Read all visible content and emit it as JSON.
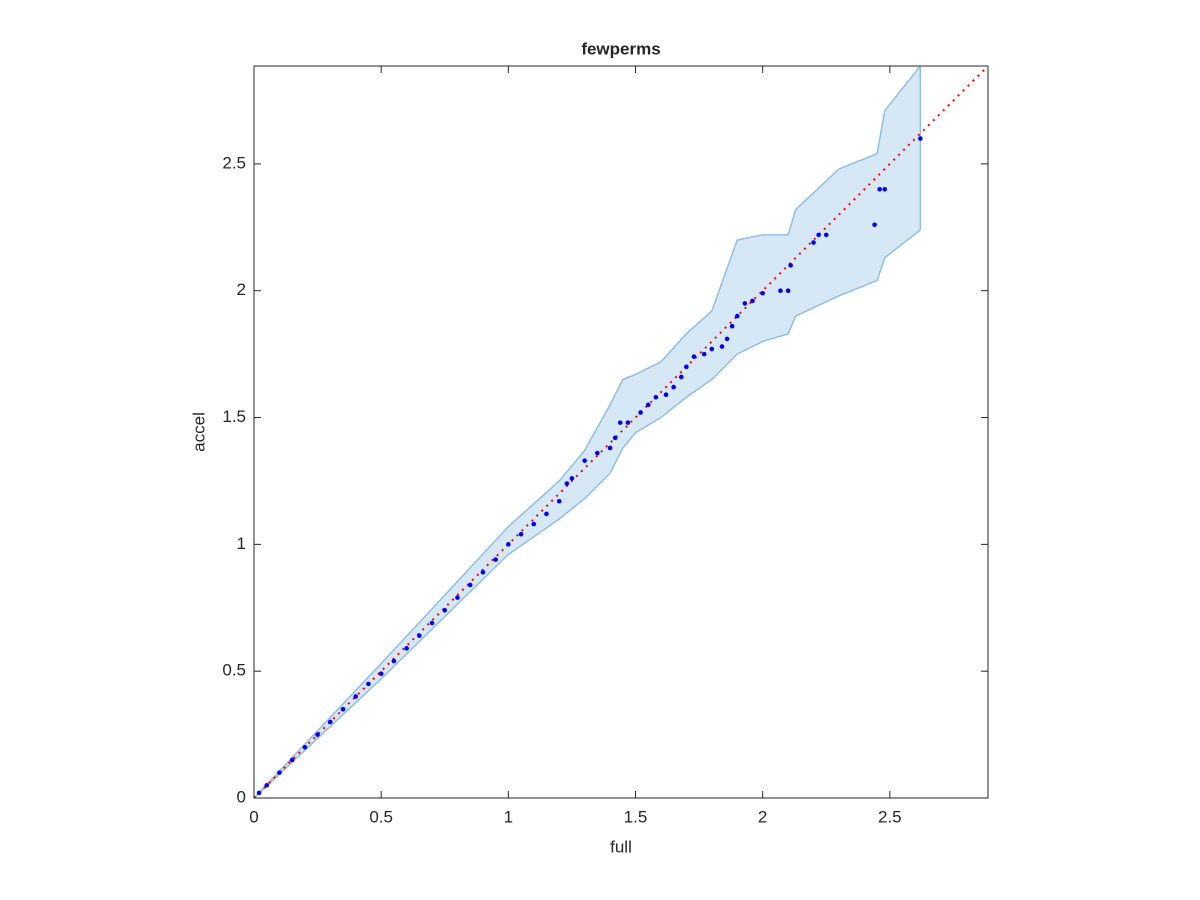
{
  "chart_data": {
    "type": "scatter",
    "title": "fewperms",
    "xlabel": "full",
    "ylabel": "accel",
    "xlim": [
      0,
      2.886
    ],
    "ylim": [
      0,
      2.886
    ],
    "xticks": [
      0,
      0.5,
      1,
      1.5,
      2,
      2.5
    ],
    "yticks": [
      0,
      0.5,
      1,
      1.5,
      2,
      2.5
    ],
    "grid": false,
    "band": {
      "color": "#d6e8f5",
      "edge_color": "#8fbfe0",
      "x": [
        0,
        0.5,
        1.0,
        1.2,
        1.3,
        1.4,
        1.45,
        1.5,
        1.6,
        1.7,
        1.8,
        1.9,
        2.0,
        2.1,
        2.13,
        2.3,
        2.45,
        2.48,
        2.62
      ],
      "upper": [
        0,
        0.53,
        1.07,
        1.25,
        1.37,
        1.55,
        1.65,
        1.67,
        1.72,
        1.83,
        1.92,
        2.2,
        2.22,
        2.22,
        2.32,
        2.48,
        2.54,
        2.71,
        2.886
      ],
      "lower": [
        0,
        0.47,
        0.96,
        1.1,
        1.18,
        1.28,
        1.38,
        1.44,
        1.5,
        1.58,
        1.65,
        1.75,
        1.8,
        1.83,
        1.9,
        1.98,
        2.04,
        2.13,
        2.24
      ]
    },
    "reference": {
      "color": "#ff0000",
      "x": [
        0,
        2.886
      ],
      "values": [
        0,
        2.886
      ]
    },
    "points": {
      "color": "#0000ff",
      "x": [
        0.02,
        0.05,
        0.1,
        0.15,
        0.2,
        0.25,
        0.3,
        0.35,
        0.4,
        0.45,
        0.5,
        0.55,
        0.6,
        0.65,
        0.7,
        0.75,
        0.8,
        0.85,
        0.9,
        0.95,
        1.0,
        1.05,
        1.1,
        1.15,
        1.2,
        1.23,
        1.25,
        1.3,
        1.35,
        1.4,
        1.42,
        1.44,
        1.47,
        1.52,
        1.55,
        1.58,
        1.62,
        1.65,
        1.68,
        1.7,
        1.73,
        1.77,
        1.8,
        1.84,
        1.86,
        1.88,
        1.9,
        1.93,
        1.96,
        2.0,
        2.07,
        2.1,
        2.11,
        2.2,
        2.22,
        2.25,
        2.44,
        2.46,
        2.48,
        2.62
      ],
      "values": [
        0.02,
        0.05,
        0.1,
        0.15,
        0.2,
        0.25,
        0.3,
        0.35,
        0.4,
        0.45,
        0.49,
        0.54,
        0.59,
        0.64,
        0.69,
        0.74,
        0.79,
        0.84,
        0.89,
        0.94,
        1.0,
        1.04,
        1.08,
        1.12,
        1.17,
        1.24,
        1.26,
        1.33,
        1.36,
        1.38,
        1.42,
        1.48,
        1.48,
        1.52,
        1.55,
        1.58,
        1.59,
        1.62,
        1.66,
        1.7,
        1.74,
        1.75,
        1.77,
        1.78,
        1.81,
        1.86,
        1.9,
        1.95,
        1.96,
        1.99,
        2.0,
        2.0,
        2.1,
        2.19,
        2.22,
        2.22,
        2.26,
        2.4,
        2.4,
        2.6
      ]
    }
  }
}
